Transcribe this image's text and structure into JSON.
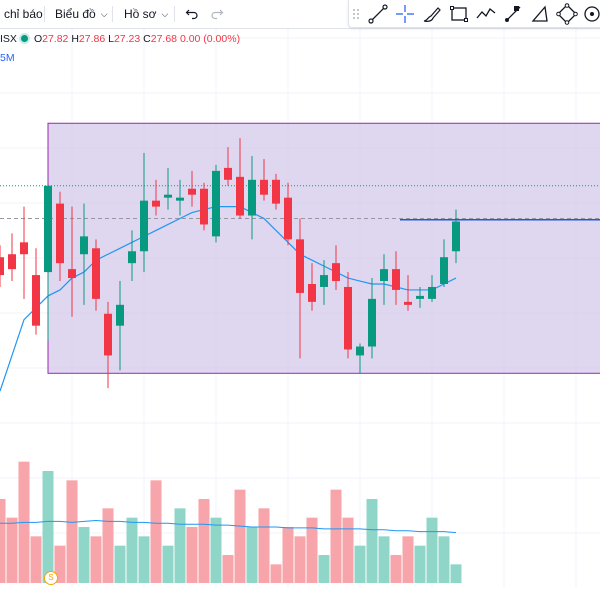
{
  "toolbar": {
    "indicators_label": "chỉ báo",
    "chart_label": "Biểu đồ",
    "profile_label": "Hồ sơ",
    "undo_icon": "undo-icon",
    "redo_icon": "redo-icon"
  },
  "drawing_tools": [
    {
      "name": "drag-handle-icon"
    },
    {
      "name": "trend-line-icon"
    },
    {
      "name": "crosshair-icon"
    },
    {
      "name": "brush-icon"
    },
    {
      "name": "rectangle-icon"
    },
    {
      "name": "path-icon"
    },
    {
      "name": "fib-tool-icon"
    },
    {
      "name": "triangle-icon"
    },
    {
      "name": "pattern-icon"
    },
    {
      "name": "target-icon"
    }
  ],
  "legend": {
    "symbol": "ISX",
    "open_label": "O",
    "open": "27.82",
    "high_label": "H",
    "high": "27.86",
    "low_label": "L",
    "low": "27.23",
    "close_label": "C",
    "close": "27.68",
    "change": "0.00 (0.00%)",
    "volume_label": "5M"
  },
  "colors": {
    "up": "#089981",
    "down": "#f23645",
    "up_volume": "#8fd6c9",
    "down_volume": "#f7a5aa",
    "ma": "#2196f3",
    "range_fill": "#d1c4e9",
    "range_border": "#9c27b0",
    "hline": "#1e5bd6"
  },
  "dividend_badge": "S",
  "chart_data": {
    "type": "candlestick",
    "price_range": [
      22.5,
      31.1
    ],
    "candles": [
      {
        "o": 27.25,
        "h": 27.45,
        "l": 26.75,
        "c": 26.95
      },
      {
        "o": 27.3,
        "h": 27.65,
        "l": 26.85,
        "c": 27.05
      },
      {
        "o": 27.5,
        "h": 28.1,
        "l": 26.55,
        "c": 27.3
      },
      {
        "o": 26.95,
        "h": 27.4,
        "l": 25.95,
        "c": 26.1
      },
      {
        "o": 27.0,
        "h": 28.45,
        "l": 25.85,
        "c": 28.45
      },
      {
        "o": 28.15,
        "h": 28.35,
        "l": 26.85,
        "c": 27.15
      },
      {
        "o": 27.05,
        "h": 28.1,
        "l": 26.25,
        "c": 26.9
      },
      {
        "o": 27.3,
        "h": 28.15,
        "l": 26.45,
        "c": 27.6
      },
      {
        "o": 27.4,
        "h": 27.55,
        "l": 26.35,
        "c": 26.55
      },
      {
        "o": 26.3,
        "h": 26.5,
        "l": 25.05,
        "c": 25.6
      },
      {
        "o": 26.1,
        "h": 26.85,
        "l": 25.35,
        "c": 26.45
      },
      {
        "o": 27.15,
        "h": 27.7,
        "l": 26.85,
        "c": 27.35
      },
      {
        "o": 27.35,
        "h": 29.0,
        "l": 27.0,
        "c": 28.2
      },
      {
        "o": 28.2,
        "h": 28.55,
        "l": 27.95,
        "c": 28.1
      },
      {
        "o": 28.25,
        "h": 28.75,
        "l": 28.05,
        "c": 28.3
      },
      {
        "o": 28.2,
        "h": 28.55,
        "l": 27.95,
        "c": 28.25
      },
      {
        "o": 28.4,
        "h": 28.7,
        "l": 28.1,
        "c": 28.3
      },
      {
        "o": 28.4,
        "h": 28.5,
        "l": 27.7,
        "c": 27.8
      },
      {
        "o": 27.6,
        "h": 28.8,
        "l": 27.5,
        "c": 28.7
      },
      {
        "o": 28.75,
        "h": 29.1,
        "l": 28.45,
        "c": 28.55
      },
      {
        "o": 28.6,
        "h": 29.25,
        "l": 27.9,
        "c": 27.95
      },
      {
        "o": 27.95,
        "h": 28.95,
        "l": 27.55,
        "c": 28.55
      },
      {
        "o": 28.55,
        "h": 28.9,
        "l": 28.2,
        "c": 28.3
      },
      {
        "o": 28.55,
        "h": 28.65,
        "l": 28.05,
        "c": 28.15
      },
      {
        "o": 28.25,
        "h": 28.5,
        "l": 27.45,
        "c": 27.55
      },
      {
        "o": 27.55,
        "h": 27.9,
        "l": 25.55,
        "c": 26.65
      },
      {
        "o": 26.8,
        "h": 27.15,
        "l": 26.35,
        "c": 26.5
      },
      {
        "o": 26.75,
        "h": 27.2,
        "l": 26.45,
        "c": 26.95
      },
      {
        "o": 27.15,
        "h": 27.45,
        "l": 26.7,
        "c": 26.85
      },
      {
        "o": 26.75,
        "h": 27.0,
        "l": 25.55,
        "c": 25.7
      },
      {
        "o": 25.6,
        "h": 25.8,
        "l": 25.3,
        "c": 25.75
      },
      {
        "o": 25.75,
        "h": 26.9,
        "l": 25.55,
        "c": 26.55
      },
      {
        "o": 26.85,
        "h": 27.3,
        "l": 26.45,
        "c": 27.05
      },
      {
        "o": 27.05,
        "h": 27.35,
        "l": 26.45,
        "c": 26.7
      },
      {
        "o": 26.5,
        "h": 26.95,
        "l": 26.35,
        "c": 26.45
      },
      {
        "o": 26.55,
        "h": 26.75,
        "l": 26.4,
        "c": 26.6
      },
      {
        "o": 26.55,
        "h": 26.95,
        "l": 26.5,
        "c": 26.75
      },
      {
        "o": 26.8,
        "h": 27.55,
        "l": 26.75,
        "c": 27.25
      },
      {
        "o": 27.35,
        "h": 28.05,
        "l": 27.15,
        "c": 27.85
      }
    ],
    "ma": [
      26.2,
      26.4,
      26.6,
      26.7,
      26.9,
      27.0,
      27.2,
      27.3,
      27.4,
      27.5,
      27.6,
      27.7,
      27.8,
      27.9,
      28.0,
      28.05,
      28.1,
      28.1,
      28.1,
      28.0,
      27.9,
      27.7,
      27.5,
      27.3,
      27.2,
      27.1,
      27.0,
      26.9,
      26.85,
      26.8,
      26.8,
      26.75,
      26.7,
      26.7,
      26.7,
      26.8,
      26.9
    ],
    "range_box": {
      "top": 29.5,
      "bottom": 25.3
    },
    "dotted_line": 28.45,
    "dashed_line": 27.9,
    "horizontal_ray": 27.88,
    "volume_range": [
      0,
      15
    ],
    "volumes": [
      9,
      7,
      13,
      5,
      12,
      4,
      11,
      6,
      5,
      8,
      4,
      7,
      5,
      11,
      4,
      8,
      6,
      9,
      7,
      3,
      10,
      6,
      8,
      2,
      6,
      5,
      7,
      3,
      10,
      7,
      4,
      9,
      5,
      3,
      5,
      4,
      7,
      5,
      2
    ],
    "volume_ma": [
      6.4,
      6.4,
      6.5,
      6.5,
      6.6,
      6.6,
      6.5,
      6.6,
      6.7,
      6.6,
      6.6,
      6.5,
      6.5,
      6.4,
      6.4,
      6.3,
      6.3,
      6.3,
      6.2,
      6.2,
      6.1,
      6.0,
      6.0,
      6.0,
      5.9,
      5.9,
      5.9,
      5.8,
      5.8,
      5.8,
      5.8,
      5.7,
      5.7,
      5.6,
      5.6,
      5.5,
      5.5,
      5.5,
      5.4
    ]
  }
}
